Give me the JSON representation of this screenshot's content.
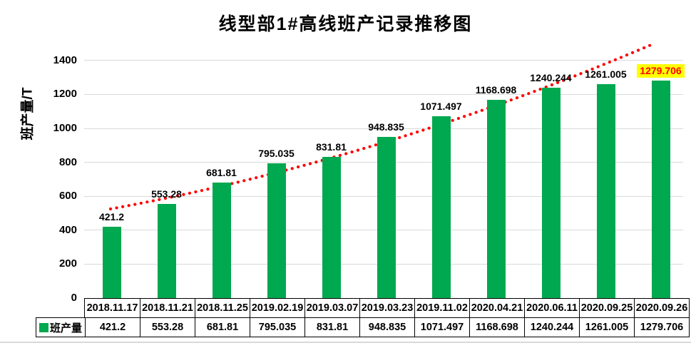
{
  "title": "线型部1#高线班产记录推移图",
  "y_axis": {
    "label": "班产量/T",
    "ticks": [
      0,
      200,
      400,
      600,
      800,
      1000,
      1200,
      1400
    ]
  },
  "legend": {
    "label": "班产量"
  },
  "colors": {
    "bar": "#00A84F",
    "trend": "#FF0000",
    "grid": "#D9D9D9",
    "highlight_bg": "#FFFF00",
    "highlight_text": "#FF0000",
    "border": "#000000"
  },
  "chart_data": {
    "type": "bar",
    "title": "线型部1#高线班产记录推移图",
    "xlabel": "",
    "ylabel": "班产量/T",
    "ylim": [
      0,
      1500
    ],
    "grid": true,
    "legend_position": "bottom-left-table",
    "categories": [
      "2018.11.17",
      "2018.11.21",
      "2018.11.25",
      "2019.02.19",
      "2019.03.07",
      "2019.03.23",
      "2019.11.02",
      "2020.04.21",
      "2020.06.11",
      "2020.09.25",
      "2020.09.26"
    ],
    "series": [
      {
        "name": "班产量",
        "values": [
          421.2,
          553.28,
          681.81,
          795.035,
          831.81,
          948.835,
          1071.497,
          1168.698,
          1240.244,
          1261.005,
          1279.706
        ]
      }
    ],
    "value_labels": [
      "421.2",
      "553.28",
      "681.81",
      "795.035",
      "831.81",
      "948.835",
      "1071.497",
      "1168.698",
      "1240.244",
      "1261.005",
      "1279.706"
    ],
    "trendline": {
      "type": "dotted-curve",
      "color": "#FF0000"
    },
    "highlight": {
      "index": 10,
      "bg": "#FFFF00",
      "text": "#FF0000"
    }
  }
}
